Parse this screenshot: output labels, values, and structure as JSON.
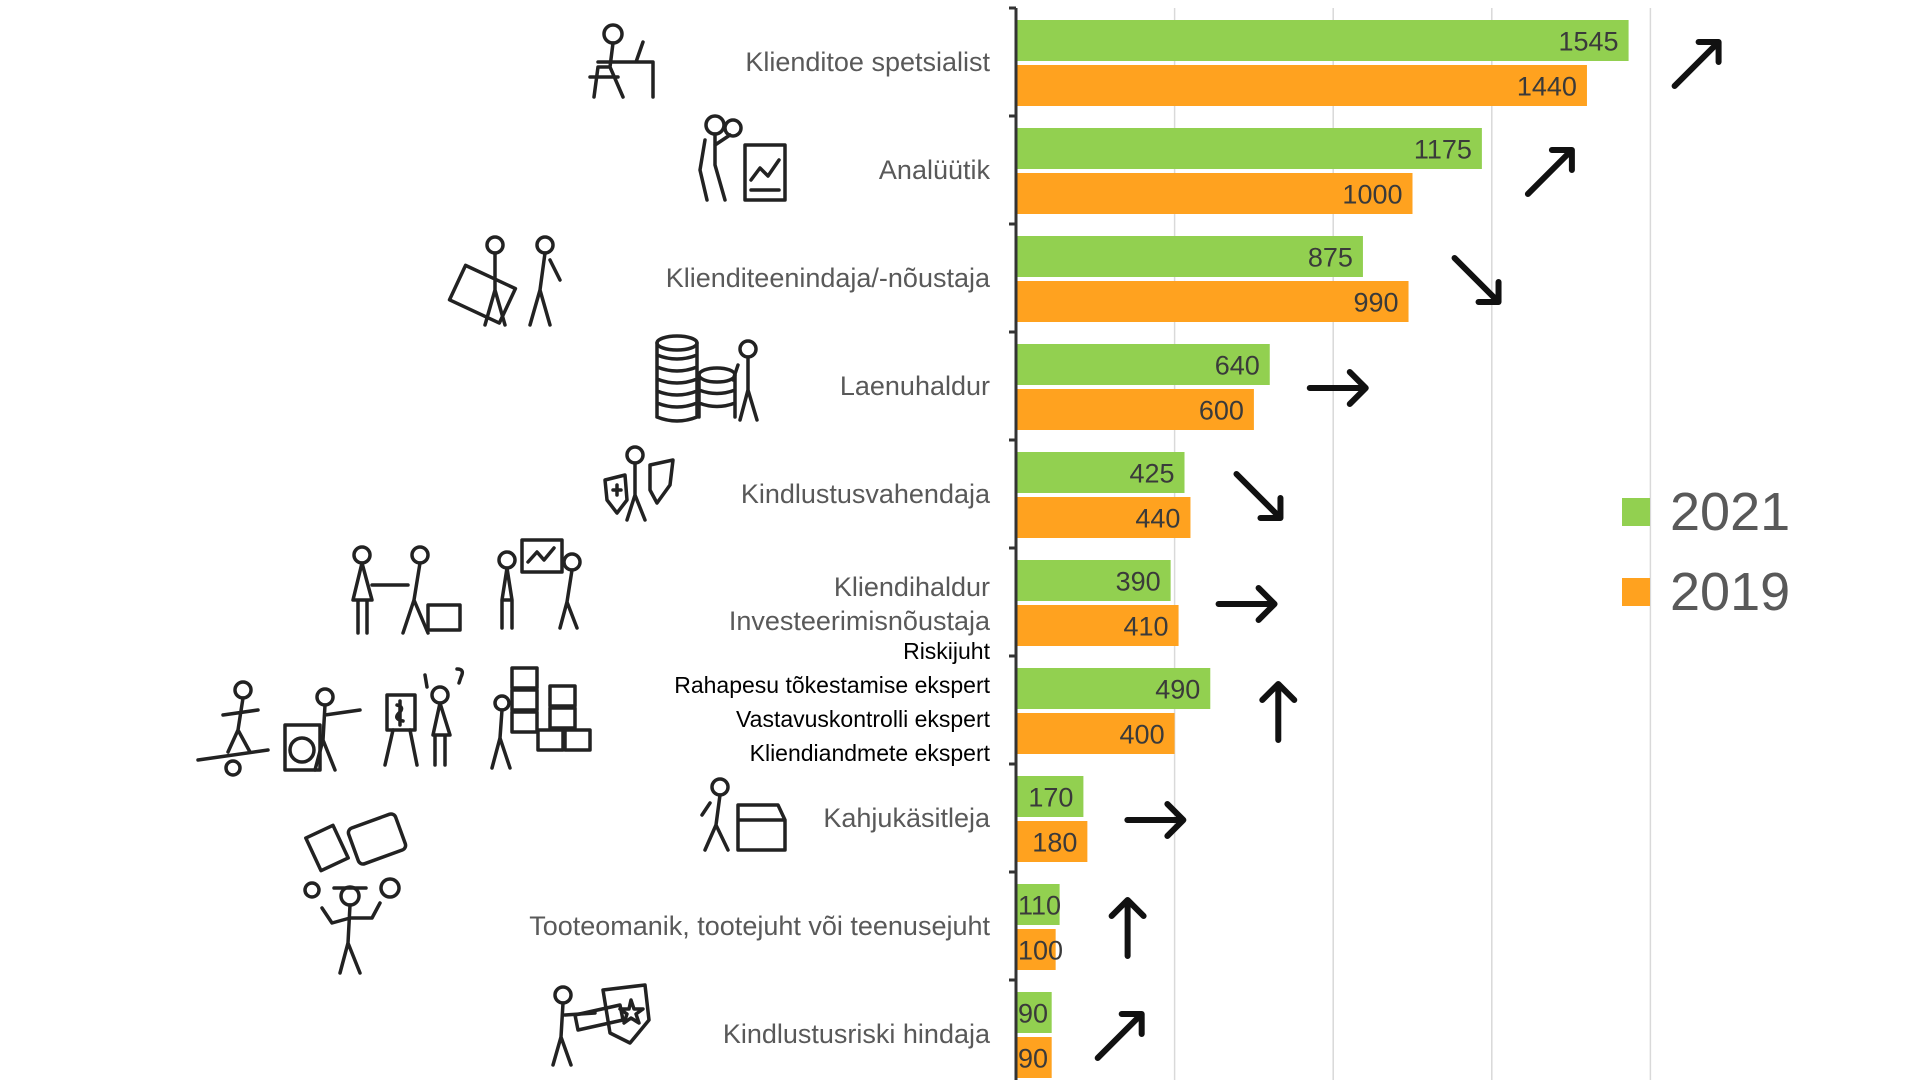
{
  "chart_data": {
    "type": "bar",
    "orientation": "horizontal",
    "title": "",
    "xlabel": "",
    "ylabel": "",
    "xlim": [
      0,
      1650
    ],
    "grid": true,
    "legend_position": "right",
    "categories": [
      [
        "Klienditoe spetsialist"
      ],
      [
        "Analüütik"
      ],
      [
        "Klienditeenindaja/-nõustaja"
      ],
      [
        "Laenuhaldur"
      ],
      [
        "Kindlustusvahendaja"
      ],
      [
        "Kliendihaldur",
        "Investeerimisnõustaja"
      ],
      [
        "Riskijuht",
        "Rahapesu tõkestamise ekspert",
        "Vastavuskontrolli ekspert",
        "Kliendiandmete ekspert"
      ],
      [
        "Kahjukäsitleja"
      ],
      [
        "Tooteomanik, tootejuht või teenusejuht"
      ],
      [
        "Kindlustusriski hindaja"
      ]
    ],
    "series": [
      {
        "name": "2021",
        "color": "#92d050",
        "values": [
          1545,
          1175,
          875,
          640,
          425,
          390,
          490,
          170,
          110,
          90
        ]
      },
      {
        "name": "2019",
        "color": "#ffa21f",
        "values": [
          1440,
          1000,
          990,
          600,
          440,
          410,
          400,
          180,
          100,
          90
        ]
      }
    ],
    "trend_arrows": [
      "up-right",
      "up-right",
      "down-right",
      "right",
      "down-right",
      "right",
      "up",
      "right",
      "up",
      "up-right"
    ]
  },
  "colors": {
    "bar_2021": "#92d050",
    "bar_2019": "#ffa21f",
    "axis": "#333333",
    "grid": "#d9d9d9",
    "label": "#595959"
  },
  "icons": [
    "desk-worker-icon",
    "analyst-report-icon",
    "customer-card-icon",
    "coins-loan-icon",
    "insurance-shield-icon",
    "client-meeting-icon",
    "investment-board-icon",
    "balance-risk-icon",
    "laundering-icon",
    "compliance-icon",
    "data-boxes-icon",
    "claims-box-icon",
    "product-juggler-icon",
    "risk-assessor-icon"
  ]
}
